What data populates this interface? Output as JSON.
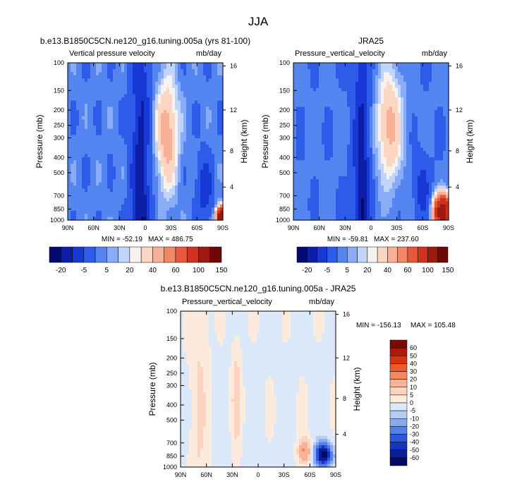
{
  "figure": {
    "title": "JJA"
  },
  "chart_data": [
    {
      "type": "heatmap",
      "id": "model",
      "title": "b.e13.B1850C5CN.ne120_g16.tuning.005a (yrs 81-100)",
      "left_label": "Vertical pressure velocity",
      "right_label": "mb/day",
      "ylabel": "Pressure (mb)",
      "y2label": "Height (km)",
      "x_ticks": [
        "90N",
        "60N",
        "30N",
        "0",
        "30S",
        "60S",
        "90S"
      ],
      "y_ticks": [
        "100",
        "150",
        "200",
        "250",
        "300",
        "400",
        "500",
        "700",
        "850",
        "1000"
      ],
      "height_ticks": [
        "16",
        "12",
        "8",
        "4"
      ],
      "min_text": "MIN = -52.19",
      "max_text": "MAX = 486.75",
      "min": -52.19,
      "max": 486.75,
      "colorbar": {
        "levels": [
          "-20",
          "-5",
          "5",
          "20",
          "40",
          "60",
          "100",
          "150"
        ],
        "colors": [
          "#050a6e",
          "#0d1fa6",
          "#1838d6",
          "#2d5de8",
          "#5585f0",
          "#8aabf5",
          "#c1d4fa",
          "#f8f2ee",
          "#fbd6c3",
          "#f7b096",
          "#f28766",
          "#e8593c",
          "#d0321f",
          "#9e1a0f",
          "#6d0806"
        ]
      }
    },
    {
      "type": "heatmap",
      "id": "obs",
      "title": "JRA25",
      "left_label": "Pressure_vertical_velocity",
      "right_label": "mb/day",
      "ylabel": "Pressure (mb)",
      "y2label": "Height (km)",
      "x_ticks": [
        "90N",
        "60N",
        "30N",
        "0",
        "30S",
        "60S",
        "90S"
      ],
      "y_ticks": [
        "100",
        "150",
        "200",
        "250",
        "300",
        "400",
        "500",
        "700",
        "850",
        "1000"
      ],
      "height_ticks": [
        "16",
        "12",
        "8",
        "4"
      ],
      "min_text": "MIN = -59.81",
      "max_text": "MAX = 237.60",
      "min": -59.81,
      "max": 237.6,
      "colorbar": {
        "levels": [
          "-20",
          "-5",
          "5",
          "20",
          "40",
          "60",
          "100",
          "150"
        ],
        "colors": [
          "#050a6e",
          "#0d1fa6",
          "#1838d6",
          "#2d5de8",
          "#5585f0",
          "#8aabf5",
          "#c1d4fa",
          "#f8f2ee",
          "#fbd6c3",
          "#f7b096",
          "#f28766",
          "#e8593c",
          "#d0321f",
          "#9e1a0f",
          "#6d0806"
        ]
      }
    },
    {
      "type": "heatmap",
      "id": "diff",
      "title": "b.e13.B1850C5CN.ne120_g16.tuning.005a - JRA25",
      "left_label": "Pressure_vertical_velocity",
      "right_label": "mb/day",
      "ylabel": "Pressure (mb)",
      "y2label": "Height (km)",
      "x_ticks": [
        "90N",
        "60N",
        "30N",
        "0",
        "30S",
        "60S",
        "90S"
      ],
      "y_ticks": [
        "100",
        "150",
        "200",
        "250",
        "300",
        "400",
        "500",
        "700",
        "850",
        "1000"
      ],
      "height_ticks": [
        "16",
        "12",
        "8",
        "4"
      ],
      "min_text": "MIN = -156.13",
      "max_text": "MAX = 105.48",
      "min": -156.13,
      "max": 105.48,
      "colorbar": {
        "levels": [
          "60",
          "50",
          "40",
          "30",
          "20",
          "10",
          "5",
          "0",
          "-5",
          "-10",
          "-20",
          "-30",
          "-40",
          "-50",
          "-60"
        ],
        "colors": [
          "#7a0a06",
          "#b0180c",
          "#d83214",
          "#ee5a2e",
          "#f48760",
          "#f8b294",
          "#fbd3bf",
          "#fcebdd",
          "#dbe8fa",
          "#b4cdf5",
          "#88abf0",
          "#5580e8",
          "#2c58dc",
          "#1436c0",
          "#0a1e96",
          "#040b66"
        ]
      }
    }
  ]
}
